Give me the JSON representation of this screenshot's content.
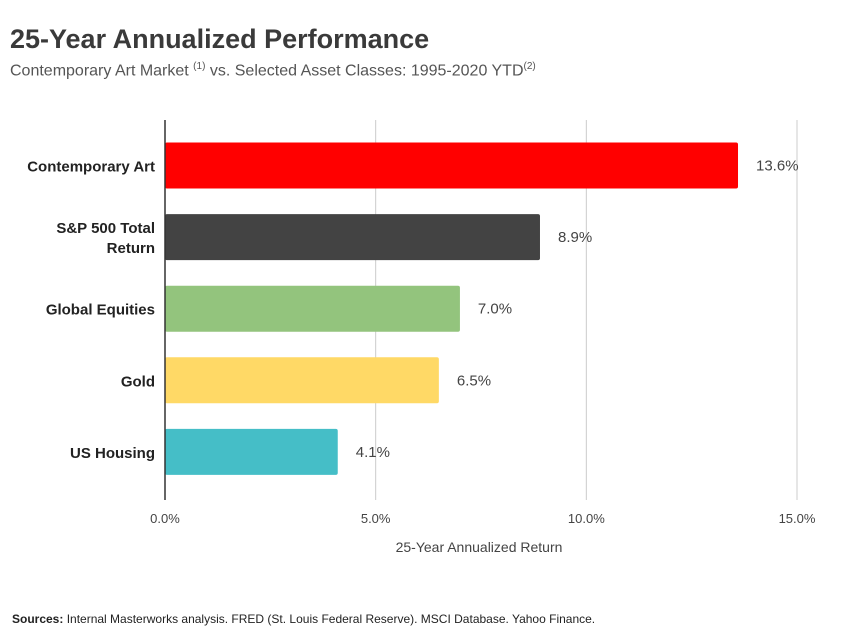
{
  "title": "25-Year Annualized Performance",
  "subtitle": {
    "text1": "Contemporary Art Market ",
    "note1": "(1)",
    "text2": " vs. Selected Asset Classes: 1995-2020 YTD",
    "note2": "(2)"
  },
  "chart_data": {
    "type": "bar",
    "orientation": "horizontal",
    "categories": [
      "Contemporary Art",
      "S&P 500 Total Return",
      "Global Equities",
      "Gold",
      "US Housing"
    ],
    "category_lines": [
      [
        "Contemporary Art"
      ],
      [
        "S&P 500 Total",
        "Return"
      ],
      [
        "Global Equities"
      ],
      [
        "Gold"
      ],
      [
        "US Housing"
      ]
    ],
    "values": [
      13.6,
      8.9,
      7.0,
      6.5,
      4.1
    ],
    "value_labels": [
      "13.6%",
      "8.9%",
      "7.0%",
      "6.5%",
      "4.1%"
    ],
    "colors": [
      "#ff0000",
      "#434343",
      "#93c47d",
      "#ffd966",
      "#45bec7"
    ],
    "xlabel": "25-Year Annualized Return",
    "xlim": [
      0,
      15
    ],
    "xticks": [
      0,
      5,
      10,
      15
    ],
    "xtick_labels": [
      "0.0%",
      "5.0%",
      "10.0%",
      "15.0%"
    ],
    "grid": true
  },
  "footer": {
    "label": "Sources:",
    "text": " Internal Masterworks analysis. FRED (St. Louis Federal Reserve). MSCI Database. Yahoo Finance."
  }
}
